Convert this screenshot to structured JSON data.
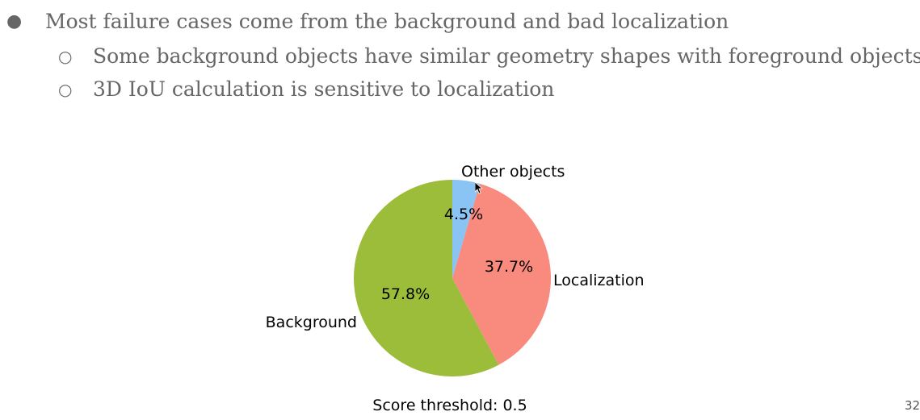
{
  "bullets": [
    {
      "marker": "●",
      "text": "Most failure cases come from the background and bad localization",
      "level": 1
    },
    {
      "marker": "○",
      "text": "Some background objects have similar geometry shapes with foreground objects",
      "level": 2
    },
    {
      "marker": "○",
      "text": "3D IoU calculation is sensitive to localization",
      "level": 2
    }
  ],
  "chart_data": {
    "type": "pie",
    "title": "",
    "caption": "Score threshold: 0.5",
    "slices": [
      {
        "label": "Other objects",
        "value": 4.5,
        "value_label": "4.5%",
        "color": "#89c4f4"
      },
      {
        "label": "Localization",
        "value": 37.7,
        "value_label": "37.7%",
        "color": "#f88a7e"
      },
      {
        "label": "Background",
        "value": 57.8,
        "value_label": "57.8%",
        "color": "#9cbd3a"
      }
    ]
  },
  "page_number": "32"
}
